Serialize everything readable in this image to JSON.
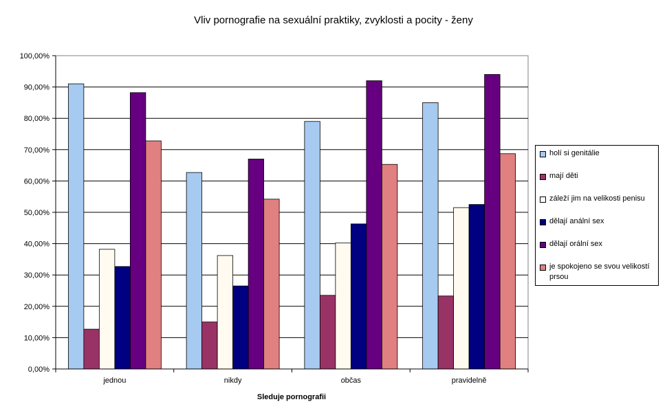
{
  "chart_data": {
    "type": "bar",
    "title": "Vliv pornografie na sexuální praktiky, zvyklosti a pocity - ženy",
    "xlabel": "Sleduje pornografii",
    "ylabel": "",
    "ylim": [
      0,
      100
    ],
    "yticks": [
      "0,00%",
      "10,00%",
      "20,00%",
      "30,00%",
      "40,00%",
      "50,00%",
      "60,00%",
      "70,00%",
      "80,00%",
      "90,00%",
      "100,00%"
    ],
    "categories": [
      "jednou",
      "nikdy",
      "občas",
      "pravidelně"
    ],
    "legend_position": "right",
    "grid": true,
    "series": [
      {
        "name": "holí si genitálie",
        "color": "#A6CAF0",
        "values": [
          91,
          62.7,
          79,
          85
        ]
      },
      {
        "name": "mají děti",
        "color": "#993366",
        "values": [
          12.7,
          15,
          23.5,
          23.3
        ]
      },
      {
        "name": "záleží jim na velikosti penisu",
        "color": "#FFFBF0",
        "values": [
          38.2,
          36.2,
          40.2,
          51.5
        ]
      },
      {
        "name": "dělají anální sex",
        "color": "#000080",
        "values": [
          32.7,
          26.5,
          46.3,
          52.5
        ]
      },
      {
        "name": "dělají orální sex",
        "color": "#660080",
        "values": [
          88.2,
          67,
          92,
          94
        ]
      },
      {
        "name": "je spokojeno se svou velikostí prsou",
        "color": "#E08080",
        "values": [
          72.8,
          54.2,
          65.3,
          68.7
        ]
      }
    ]
  }
}
